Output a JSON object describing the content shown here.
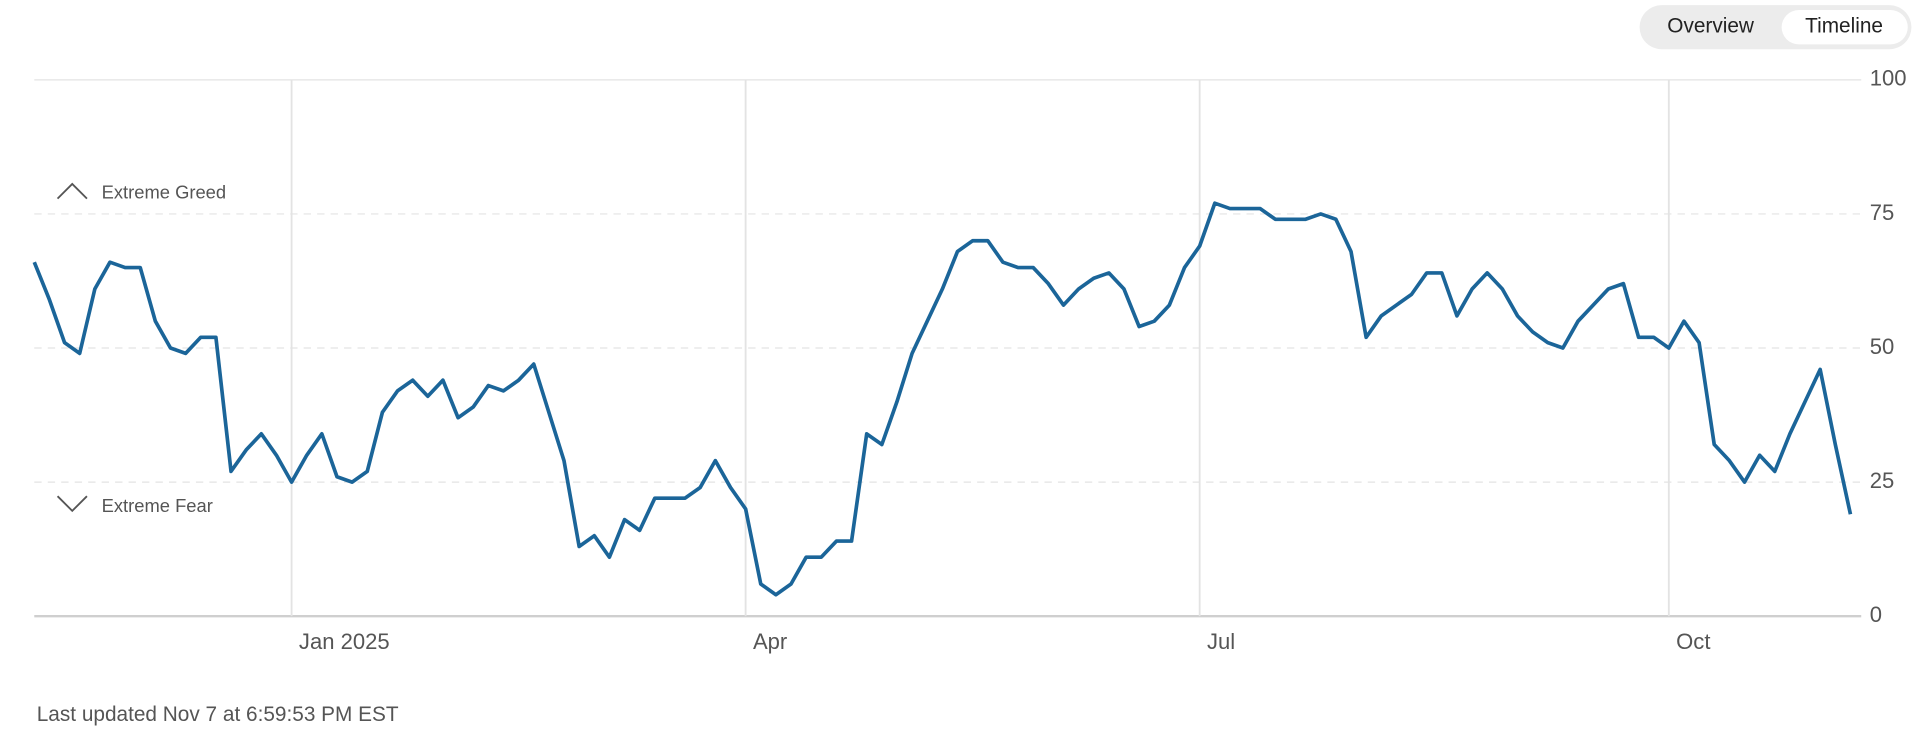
{
  "chart_data": {
    "type": "line",
    "controls": [
      "Overview",
      "Timeline"
    ],
    "annotations": [
      "Extreme Greed",
      "Extreme Fear"
    ],
    "footer": "Last updated Nov 7 at 6:59:53 PM EST",
    "categories": [
      null,
      null,
      null,
      null,
      null,
      null,
      null,
      null,
      null,
      null,
      null,
      null,
      null,
      null,
      null,
      null,
      null,
      "Jan 2025",
      null,
      null,
      null,
      null,
      null,
      null,
      null,
      null,
      null,
      null,
      null,
      null,
      null,
      null,
      null,
      null,
      null,
      null,
      null,
      null,
      null,
      null,
      null,
      null,
      null,
      null,
      null,
      null,
      null,
      "Apr",
      null,
      null,
      null,
      null,
      null,
      null,
      null,
      null,
      null,
      null,
      null,
      null,
      null,
      null,
      null,
      null,
      null,
      null,
      null,
      null,
      null,
      null,
      null,
      null,
      null,
      null,
      null,
      null,
      null,
      "Jul",
      null,
      null,
      null,
      null,
      null,
      null,
      null,
      null,
      null,
      null,
      null,
      null,
      null,
      null,
      null,
      null,
      null,
      null,
      null,
      null,
      null,
      null,
      null,
      null,
      null,
      null,
      null,
      null,
      null,
      null,
      "Oct",
      null,
      null,
      null,
      null,
      null,
      null,
      null,
      null,
      null,
      null,
      null,
      null
    ],
    "series": [
      {
        "color": "#1b6599",
        "values": [
          66,
          59,
          51,
          49,
          61,
          66,
          65,
          65,
          55,
          50,
          49,
          52,
          52,
          27,
          31,
          34,
          30,
          25,
          30,
          34,
          26,
          25,
          27,
          38,
          42,
          44,
          41,
          44,
          37,
          39,
          43,
          42,
          44,
          47,
          38,
          29,
          13,
          15,
          11,
          18,
          16,
          22,
          22,
          22,
          24,
          29,
          24,
          20,
          6,
          4,
          6,
          11,
          11,
          14,
          14,
          34,
          32,
          40,
          49,
          55,
          61,
          68,
          70,
          70,
          66,
          65,
          65,
          62,
          58,
          61,
          63,
          64,
          61,
          54,
          55,
          58,
          65,
          69,
          77,
          76,
          76,
          76,
          74,
          74,
          74,
          75,
          74,
          68,
          52,
          56,
          58,
          60,
          64,
          64,
          56,
          61,
          64,
          61,
          56,
          53,
          51,
          50,
          55,
          58,
          61,
          62,
          52,
          52,
          50,
          55,
          51,
          32,
          29,
          25,
          30,
          27,
          34,
          40,
          46,
          32,
          19
        ]
      }
    ],
    "ylim": [
      0,
      100
    ],
    "yticks": [
      0,
      25,
      50,
      75,
      100
    ],
    "grid": true
  }
}
